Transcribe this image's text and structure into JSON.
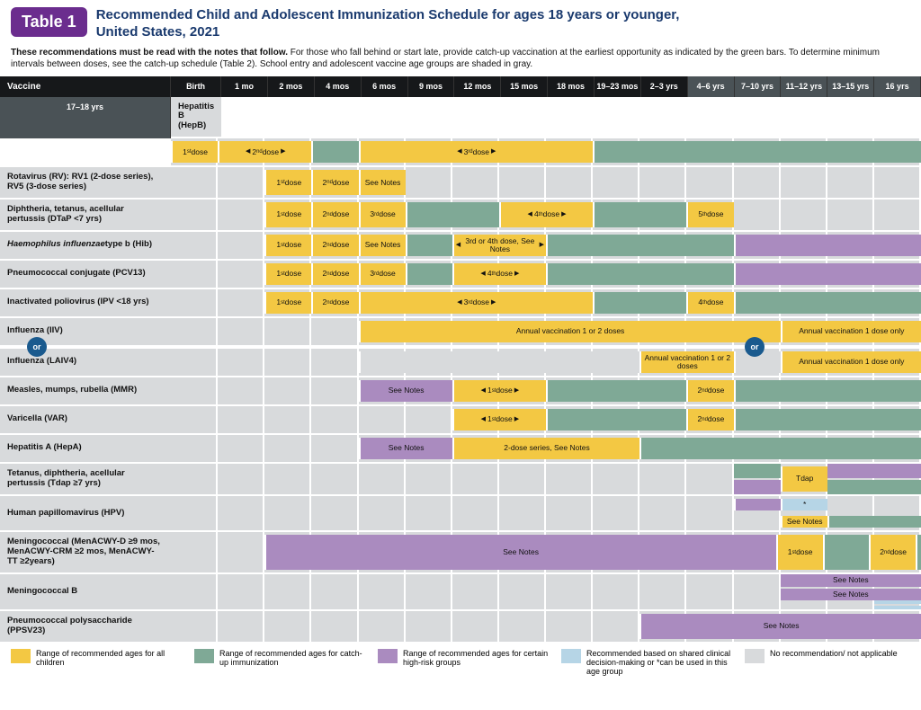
{
  "header": {
    "badge": "Table 1",
    "title_l1": "Recommended Child and Adolescent Immunization Schedule for ages 18 years or younger,",
    "title_l2": "United States, 2021"
  },
  "subtitle": {
    "bold": "These recommendations must be read with the notes that follow.",
    "rest": " For those who fall behind or start late, provide catch-up vaccination at the earliest opportunity as indicated by the green bars. To determine minimum intervals between doses, see the catch-up schedule (Table 2). School entry and adolescent vaccine age groups are shaded in gray."
  },
  "columns_label": "Vaccine",
  "age_columns": [
    "Birth",
    "1 mo",
    "2 mos",
    "4 mos",
    "6 mos",
    "9 mos",
    "12 mos",
    "15 mos",
    "18 mos",
    "19–23 mos",
    "2–3 yrs",
    "4–6 yrs",
    "7–10 yrs",
    "11–12 yrs",
    "13–15 yrs",
    "16 yrs",
    "17–18 yrs"
  ],
  "shaded_header_indices": [
    11,
    12,
    13,
    14,
    15,
    16
  ],
  "colors": {
    "yellow": "#f3c843",
    "green": "#7fa996",
    "purple": "#aa8bbf",
    "blue": "#b6d5e6",
    "gray": "#d8dadc",
    "header_bg": "#16181a",
    "header_shade": "#4a5256",
    "badge": "#6b2d8e",
    "title": "#1a3a6e",
    "or_badge": "#1a5a8e"
  },
  "or_label": "or",
  "vaccines": [
    {
      "name": "Hepatitis B (HepB)",
      "bars": [
        {
          "start": 1,
          "span": 1,
          "color": "yellow",
          "label": "1st dose",
          "sup": "st"
        },
        {
          "start": 2,
          "span": 2,
          "color": "yellow",
          "label": "2nd dose",
          "arrow": "both",
          "sup": "nd"
        },
        {
          "start": 4,
          "span": 1,
          "color": "green",
          "label": ""
        },
        {
          "start": 5,
          "span": 5,
          "color": "yellow",
          "label": "3rd dose",
          "arrow": "both",
          "sup": "rd"
        },
        {
          "start": 10,
          "span": 8,
          "color": "green",
          "label": ""
        }
      ]
    },
    {
      "name": "Rotavirus (RV): RV1 (2-dose series), RV5 (3-dose series)",
      "bars": [
        {
          "start": 3,
          "span": 1,
          "color": "yellow",
          "label": "1st dose",
          "sup": "st"
        },
        {
          "start": 4,
          "span": 1,
          "color": "yellow",
          "label": "2nd dose",
          "sup": "nd"
        },
        {
          "start": 5,
          "span": 1,
          "color": "yellow",
          "label": "See Notes"
        }
      ]
    },
    {
      "name": "Diphtheria, tetanus, acellular pertussis (DTaP <7 yrs)",
      "bars": [
        {
          "start": 3,
          "span": 1,
          "color": "yellow",
          "label": "1st dose",
          "sup": "st"
        },
        {
          "start": 4,
          "span": 1,
          "color": "yellow",
          "label": "2nd dose",
          "sup": "nd"
        },
        {
          "start": 5,
          "span": 1,
          "color": "yellow",
          "label": "3rd dose",
          "sup": "rd"
        },
        {
          "start": 6,
          "span": 2,
          "color": "green",
          "label": ""
        },
        {
          "start": 8,
          "span": 2,
          "color": "yellow",
          "label": "4th dose",
          "arrow": "both",
          "sup": "th"
        },
        {
          "start": 10,
          "span": 2,
          "color": "green",
          "label": ""
        },
        {
          "start": 12,
          "span": 1,
          "color": "yellow",
          "label": "5th dose",
          "sup": "th"
        }
      ]
    },
    {
      "name": "Haemophilus influenzae type b (Hib)",
      "italic": "Haemophilus influenzae",
      "bars": [
        {
          "start": 3,
          "span": 1,
          "color": "yellow",
          "label": "1st dose",
          "sup": "st"
        },
        {
          "start": 4,
          "span": 1,
          "color": "yellow",
          "label": "2nd dose",
          "sup": "nd"
        },
        {
          "start": 5,
          "span": 1,
          "color": "yellow",
          "label": "See Notes"
        },
        {
          "start": 6,
          "span": 1,
          "color": "green",
          "label": ""
        },
        {
          "start": 7,
          "span": 2,
          "color": "yellow",
          "label": "3rd or 4th dose, See Notes",
          "arrow": "both"
        },
        {
          "start": 9,
          "span": 4,
          "color": "green",
          "label": ""
        },
        {
          "start": 13,
          "span": 5,
          "color": "purple",
          "label": ""
        }
      ]
    },
    {
      "name": "Pneumococcal conjugate (PCV13)",
      "bars": [
        {
          "start": 3,
          "span": 1,
          "color": "yellow",
          "label": "1st dose",
          "sup": "st"
        },
        {
          "start": 4,
          "span": 1,
          "color": "yellow",
          "label": "2nd dose",
          "sup": "nd"
        },
        {
          "start": 5,
          "span": 1,
          "color": "yellow",
          "label": "3rd dose",
          "sup": "rd"
        },
        {
          "start": 6,
          "span": 1,
          "color": "green",
          "label": ""
        },
        {
          "start": 7,
          "span": 2,
          "color": "yellow",
          "label": "4th dose",
          "arrow": "both",
          "sup": "th"
        },
        {
          "start": 9,
          "span": 4,
          "color": "green",
          "label": ""
        },
        {
          "start": 13,
          "span": 5,
          "color": "purple",
          "label": ""
        }
      ]
    },
    {
      "name": "Inactivated poliovirus (IPV <18 yrs)",
      "bars": [
        {
          "start": 3,
          "span": 1,
          "color": "yellow",
          "label": "1st dose",
          "sup": "st"
        },
        {
          "start": 4,
          "span": 1,
          "color": "yellow",
          "label": "2nd dose",
          "sup": "nd"
        },
        {
          "start": 5,
          "span": 5,
          "color": "yellow",
          "label": "3rd dose",
          "arrow": "both",
          "sup": "rd"
        },
        {
          "start": 10,
          "span": 2,
          "color": "green",
          "label": ""
        },
        {
          "start": 12,
          "span": 1,
          "color": "yellow",
          "label": "4th dose",
          "sup": "th"
        },
        {
          "start": 13,
          "span": 5,
          "color": "green",
          "label": ""
        }
      ]
    },
    {
      "name": "Influenza (IIV)",
      "bars": [
        {
          "start": 5,
          "span": 9,
          "color": "yellow",
          "label": "Annual vaccination 1 or 2 doses"
        },
        {
          "start": 14,
          "span": 4,
          "color": "yellow",
          "label": "Annual vaccination 1 dose only"
        }
      ]
    },
    {
      "name": "Influenza (LAIV4)",
      "bars": [
        {
          "start": 5,
          "span": 6,
          "color": "gray",
          "label": ""
        },
        {
          "start": 11,
          "span": 2,
          "color": "yellow",
          "label": "Annual vaccination 1 or 2 doses"
        },
        {
          "start": 13,
          "span": 1,
          "color": "gray",
          "label": ""
        },
        {
          "start": 14,
          "span": 4,
          "color": "yellow",
          "label": "Annual vaccination 1 dose only"
        }
      ]
    },
    {
      "name": "Measles, mumps, rubella (MMR)",
      "bars": [
        {
          "start": 5,
          "span": 2,
          "color": "purple",
          "label": "See Notes"
        },
        {
          "start": 7,
          "span": 2,
          "color": "yellow",
          "label": "1st dose",
          "arrow": "both",
          "sup": "st"
        },
        {
          "start": 9,
          "span": 3,
          "color": "green",
          "label": ""
        },
        {
          "start": 12,
          "span": 1,
          "color": "yellow",
          "label": "2nd dose",
          "sup": "nd"
        },
        {
          "start": 13,
          "span": 5,
          "color": "green",
          "label": ""
        }
      ]
    },
    {
      "name": "Varicella (VAR)",
      "bars": [
        {
          "start": 7,
          "span": 2,
          "color": "yellow",
          "label": "1st dose",
          "arrow": "both",
          "sup": "st"
        },
        {
          "start": 9,
          "span": 3,
          "color": "green",
          "label": ""
        },
        {
          "start": 12,
          "span": 1,
          "color": "yellow",
          "label": "2nd dose",
          "sup": "nd"
        },
        {
          "start": 13,
          "span": 5,
          "color": "green",
          "label": ""
        }
      ]
    },
    {
      "name": "Hepatitis A (HepA)",
      "bars": [
        {
          "start": 5,
          "span": 2,
          "color": "purple",
          "label": "See Notes"
        },
        {
          "start": 7,
          "span": 4,
          "color": "yellow",
          "label": "2-dose series, See Notes"
        },
        {
          "start": 11,
          "span": 7,
          "color": "green",
          "label": ""
        }
      ]
    },
    {
      "name": "Tetanus, diphtheria, acellular pertussis (Tdap ≥7 yrs)",
      "stacked": true,
      "bars": [
        {
          "start": 13,
          "span": 1,
          "color": "green",
          "label": "",
          "half": "top"
        },
        {
          "start": 13,
          "span": 1,
          "color": "purple",
          "label": "",
          "half": "bottom"
        },
        {
          "start": 14,
          "span": 1,
          "color": "yellow",
          "label": "Tdap"
        },
        {
          "start": 15,
          "span": 3,
          "color": "purple",
          "label": "",
          "half": "top"
        },
        {
          "start": 15,
          "span": 3,
          "color": "green",
          "label": "",
          "half": "bottom"
        }
      ]
    },
    {
      "name": "Human papillomavirus (HPV)",
      "bars": [
        {
          "start": 13,
          "span": 1,
          "color": "purple",
          "label": ""
        },
        {
          "start": 14,
          "span": 1,
          "color": "blue",
          "label": "*",
          "half": "bottom"
        },
        {
          "start": 14,
          "span": 1,
          "color": "yellow",
          "label": "See Notes"
        },
        {
          "start": 15,
          "span": 3,
          "color": "green",
          "label": ""
        }
      ]
    },
    {
      "name": "Meningococcal (MenACWY-D ≥9 mos, MenACWY-CRM ≥2 mos, MenACWY-TT ≥2years)",
      "tall": true,
      "bars": [
        {
          "start": 3,
          "span": 11,
          "color": "purple",
          "label": "See Notes"
        },
        {
          "start": 14,
          "span": 1,
          "color": "yellow",
          "label": "1st dose",
          "sup": "st"
        },
        {
          "start": 15,
          "span": 1,
          "color": "green",
          "label": ""
        },
        {
          "start": 16,
          "span": 1,
          "color": "yellow",
          "label": "2nd dose",
          "sup": "nd"
        },
        {
          "start": 17,
          "span": 1,
          "color": "green",
          "label": ""
        }
      ]
    },
    {
      "name": "Meningococcal B",
      "bars": [
        {
          "start": 14,
          "span": 4,
          "color": "purple",
          "label": "See Notes",
          "half": "top"
        },
        {
          "start": 16,
          "span": 2,
          "color": "blue",
          "label": "",
          "half": "bottom"
        }
      ],
      "stacked": true
    },
    {
      "name": "Pneumococcal polysaccharide (PPSV23)",
      "bars": [
        {
          "start": 11,
          "span": 7,
          "color": "purple",
          "label": "See Notes"
        }
      ]
    }
  ],
  "legend": [
    {
      "color": "yellow",
      "text": "Range of recommended ages for all children"
    },
    {
      "color": "green",
      "text": "Range of recommended ages for catch-up immunization"
    },
    {
      "color": "purple",
      "text": "Range of recommended ages for certain high-risk groups"
    },
    {
      "color": "blue",
      "text": "Recommended based on shared clinical decision-making or *can be used in this age group"
    },
    {
      "color": "gray",
      "text": "No recommendation/ not applicable"
    }
  ]
}
